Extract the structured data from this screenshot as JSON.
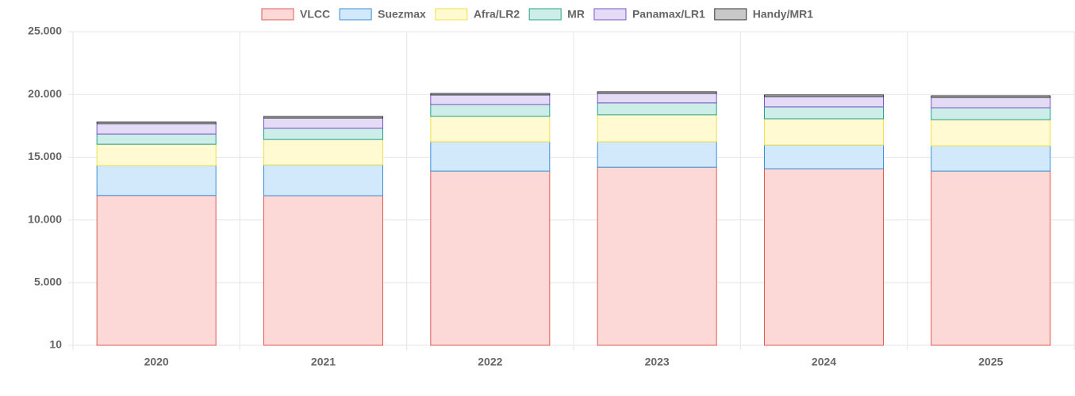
{
  "chart_data": {
    "type": "stacked_bar",
    "categories": [
      "2020",
      "2021",
      "2022",
      "2023",
      "2024",
      "2025"
    ],
    "series": [
      {
        "name": "VLCC",
        "color": "#fcd9d6",
        "border": "#e05a55",
        "values": [
          11950,
          11930,
          13890,
          14200,
          14080,
          13890
        ]
      },
      {
        "name": "Suezmax",
        "color": "#d2e8fb",
        "border": "#3a8fd6",
        "values": [
          2380,
          2460,
          2340,
          2030,
          1890,
          2020
        ]
      },
      {
        "name": "Afra/LR2",
        "color": "#fffad1",
        "border": "#f2e04a",
        "values": [
          1700,
          2020,
          2020,
          2150,
          2090,
          2080
        ]
      },
      {
        "name": "MR",
        "color": "#cdeee8",
        "border": "#26a08c",
        "values": [
          820,
          890,
          950,
          950,
          950,
          950
        ]
      },
      {
        "name": "Panamax/LR1",
        "color": "#e4dbf6",
        "border": "#7a55c8",
        "values": [
          820,
          820,
          760,
          760,
          820,
          820
        ]
      },
      {
        "name": "Handy/MR1",
        "color": "#c8c8c8",
        "border": "#333333",
        "values": [
          130,
          120,
          120,
          120,
          130,
          130
        ]
      }
    ],
    "ylim": [
      10,
      25000
    ],
    "yticks": [
      10,
      {
        "value": 5000,
        "label": "5.000"
      },
      {
        "value": 10000,
        "label": "10.000"
      },
      {
        "value": 15000,
        "label": "15.000"
      },
      {
        "value": 20000,
        "label": "20.000"
      },
      {
        "value": 25000,
        "label": "25.000"
      }
    ],
    "grid": true,
    "legend": "top"
  }
}
